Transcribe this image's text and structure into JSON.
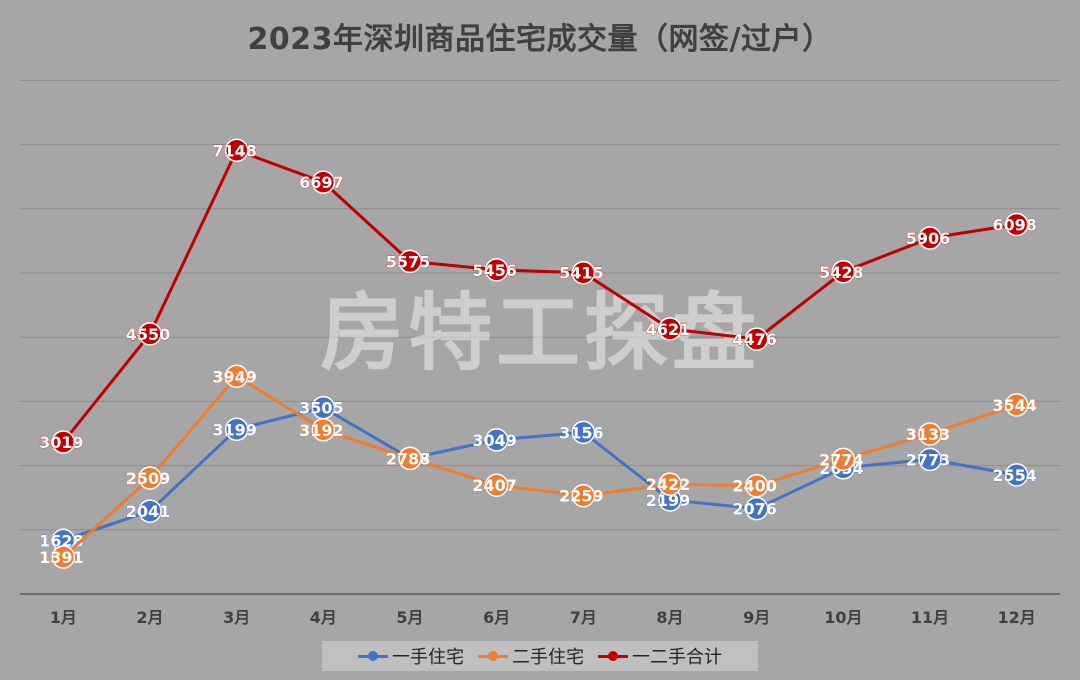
{
  "chart_data": {
    "type": "line",
    "title": "2023年深圳商品住宅成交量（网签/过户）",
    "watermark": "房特工探盘",
    "categories": [
      "1月",
      "2月",
      "3月",
      "4月",
      "5月",
      "6月",
      "7月",
      "8月",
      "9月",
      "10月",
      "11月",
      "12月"
    ],
    "series": [
      {
        "name": "一手住宅",
        "color": "#4472c4",
        "values": [
          1628,
          2041,
          3199,
          3505,
          2787,
          3049,
          3156,
          2199,
          2076,
          2654,
          2773,
          2554
        ]
      },
      {
        "name": "二手住宅",
        "color": "#ed7d31",
        "values": [
          1391,
          2509,
          3949,
          3192,
          2788,
          2407,
          2259,
          2422,
          2400,
          2774,
          3133,
          3544
        ]
      },
      {
        "name": "一二手合计",
        "color": "#c00000",
        "values": [
          3019,
          4550,
          7148,
          6697,
          5575,
          5456,
          5415,
          4621,
          4476,
          5428,
          5906,
          6098
        ]
      }
    ],
    "grid": true,
    "legend_position": "bottom"
  }
}
